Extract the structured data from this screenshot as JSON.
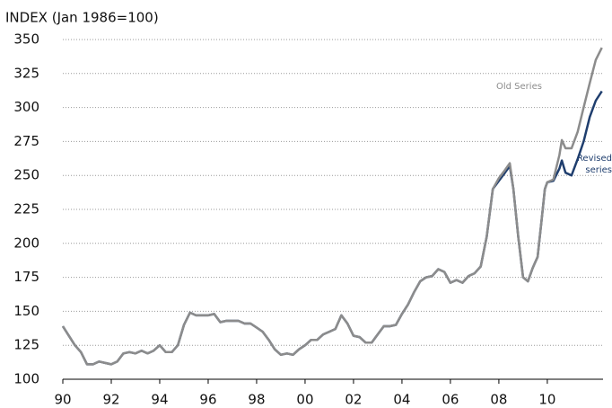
{
  "chart_data": {
    "type": "line",
    "title": "INDEX (Jan 1986=100)",
    "x": [
      1990,
      1990.25,
      1990.5,
      1990.75,
      1991,
      1991.25,
      1991.5,
      1991.75,
      1992,
      1992.25,
      1992.5,
      1992.75,
      1993,
      1993.25,
      1993.5,
      1993.75,
      1994,
      1994.25,
      1994.5,
      1994.75,
      1995,
      1995.25,
      1995.5,
      1995.75,
      1996,
      1996.25,
      1996.5,
      1996.75,
      1997,
      1997.25,
      1997.5,
      1997.75,
      1998,
      1998.25,
      1998.5,
      1998.75,
      1999,
      1999.25,
      1999.5,
      1999.75,
      2000,
      2000.25,
      2000.5,
      2000.75,
      2001,
      2001.25,
      2001.5,
      2001.75,
      2002,
      2002.25,
      2002.5,
      2002.75,
      2003,
      2003.25,
      2003.5,
      2003.75,
      2004,
      2004.25,
      2004.5,
      2004.75,
      2005,
      2005.25,
      2005.5,
      2005.75,
      2006,
      2006.25,
      2006.5,
      2006.75,
      2007,
      2007.25,
      2007.5,
      2007.75,
      2008,
      2008.25,
      2008.45,
      2008.6,
      2008.8,
      2009,
      2009.2,
      2009.4,
      2009.6,
      2009.75,
      2009.9,
      2010,
      2010.25,
      2010.5,
      2010.6,
      2010.75,
      2011,
      2011.25,
      2011.5,
      2011.75,
      2012,
      2012.25
    ],
    "series": [
      {
        "name": "Revised series",
        "color": "#1f3e6e",
        "values": [
          139,
          132,
          125,
          120,
          111,
          111,
          113,
          112,
          111,
          113,
          119,
          120,
          119,
          121,
          119,
          121,
          125,
          120,
          120,
          125,
          140,
          149,
          147,
          147,
          147,
          148,
          142,
          143,
          143,
          143,
          141,
          141,
          138,
          135,
          129,
          122,
          118,
          119,
          118,
          122,
          125,
          129,
          129,
          133,
          135,
          137,
          147,
          141,
          132,
          131,
          127,
          127,
          133,
          139,
          139,
          140,
          148,
          155,
          164,
          172,
          175,
          176,
          181,
          179,
          171,
          173,
          171,
          176,
          178,
          183,
          205,
          240,
          246,
          252,
          257,
          240,
          205,
          175,
          172,
          182,
          190,
          215,
          240,
          245,
          246,
          255,
          261,
          252,
          250,
          262,
          275,
          293,
          305,
          312
        ]
      },
      {
        "name": "Old Series",
        "color": "#8c8c8c",
        "values": [
          139,
          132,
          125,
          120,
          111,
          111,
          113,
          112,
          111,
          113,
          119,
          120,
          119,
          121,
          119,
          121,
          125,
          120,
          120,
          125,
          140,
          149,
          147,
          147,
          147,
          148,
          142,
          143,
          143,
          143,
          141,
          141,
          138,
          135,
          129,
          122,
          118,
          119,
          118,
          122,
          125,
          129,
          129,
          133,
          135,
          137,
          147,
          141,
          132,
          131,
          127,
          127,
          133,
          139,
          139,
          140,
          148,
          155,
          164,
          172,
          175,
          176,
          181,
          179,
          171,
          173,
          171,
          176,
          178,
          183,
          205,
          240,
          248,
          254,
          259,
          240,
          205,
          175,
          172,
          182,
          190,
          215,
          240,
          245,
          247,
          265,
          276,
          270,
          270,
          282,
          300,
          318,
          335,
          344
        ]
      }
    ],
    "xlim": [
      1990,
      2012.3
    ],
    "xticks": [
      {
        "value": 1990,
        "label": "90"
      },
      {
        "value": 1992,
        "label": "92"
      },
      {
        "value": 1994,
        "label": "94"
      },
      {
        "value": 1996,
        "label": "96"
      },
      {
        "value": 1998,
        "label": "98"
      },
      {
        "value": 2000,
        "label": "00"
      },
      {
        "value": 2002,
        "label": "02"
      },
      {
        "value": 2004,
        "label": "04"
      },
      {
        "value": 2006,
        "label": "06"
      },
      {
        "value": 2008,
        "label": "08"
      },
      {
        "value": 2010,
        "label": "10"
      }
    ],
    "ylim": [
      100,
      350
    ],
    "yticks": [
      100,
      125,
      150,
      175,
      200,
      225,
      250,
      275,
      300,
      325,
      350
    ],
    "grid": true
  }
}
